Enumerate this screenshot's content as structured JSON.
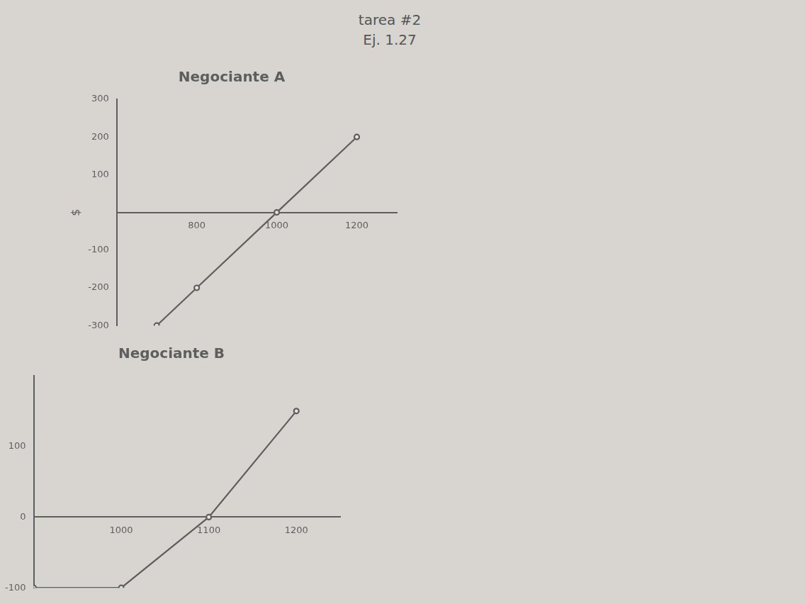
{
  "header": [
    "tarea #2",
    "Ej. 1.27"
  ],
  "chart_data": [
    {
      "type": "line",
      "title": "Negociante A",
      "y_label": "$",
      "x": [
        700,
        800,
        1000,
        1200
      ],
      "values": [
        -300,
        -200,
        0,
        200
      ],
      "color": "#5e5e5e",
      "marker": "circle",
      "line_style": "solid",
      "grid": false,
      "xlim": [
        600,
        1300
      ],
      "xticks": [
        800,
        1000,
        1200
      ],
      "ylim": [
        -300,
        300
      ],
      "yticks": [
        -300,
        -200,
        -100,
        100,
        200,
        300
      ]
    },
    {
      "type": "line",
      "title": "Negociante B",
      "x": [
        900,
        1000,
        1100,
        1200
      ],
      "values": [
        -100,
        -100,
        0,
        150
      ],
      "color": "#5e5e5e",
      "marker": "circle",
      "line_style": "solid",
      "grid": false,
      "xlim": [
        900,
        1250
      ],
      "xticks": [
        1000,
        1100,
        1200
      ],
      "ylim": [
        -100,
        200
      ],
      "yticks": [
        -100,
        0,
        100
      ]
    }
  ]
}
